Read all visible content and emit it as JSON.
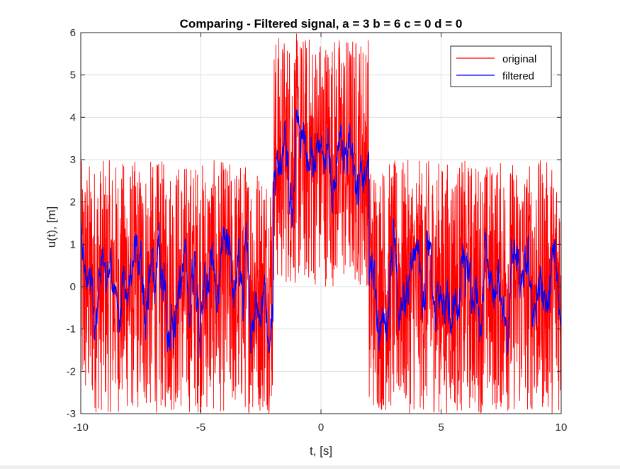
{
  "chart_data": {
    "type": "line",
    "title": "Comparing - Filtered signal, a = 3 b = 6 c = 0 d = 0",
    "xlabel": "t, [s]",
    "ylabel": "u(t), [m]",
    "xlim": [
      -10,
      10
    ],
    "ylim": [
      -3,
      6
    ],
    "xticks": [
      -10,
      -5,
      0,
      5,
      10
    ],
    "yticks": [
      -3,
      -2,
      -1,
      0,
      1,
      2,
      3,
      4,
      5,
      6
    ],
    "grid": true,
    "legend_position": "top-right",
    "signal_description": "rectangular pulse of height 3 on -2 < t < 2, zero elsewhere; original has additive noise of amplitude 3, filtered is smoothed",
    "pulse": {
      "t_start": -2,
      "t_end": 2,
      "height": 3
    },
    "noise_amplitude": 3,
    "series": [
      {
        "name": "original",
        "color": "#ff0000",
        "role": "noisy"
      },
      {
        "name": "filtered",
        "color": "#0000ff",
        "role": "smoothed"
      }
    ]
  }
}
